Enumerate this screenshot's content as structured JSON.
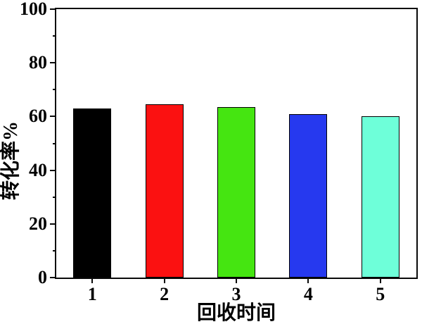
{
  "chart_data": {
    "type": "bar",
    "title": "",
    "categories": [
      "1",
      "2",
      "3",
      "4",
      "5"
    ],
    "values": [
      63,
      64.5,
      63.5,
      61,
      60
    ],
    "bar_colors": [
      "#000000",
      "#FB1111",
      "#45E511",
      "#2639EF",
      "#6EFFD9"
    ],
    "bar_edge_color": "#000000",
    "xlabel": "回收时间",
    "ylabel": "转化率%",
    "ylim": [
      0,
      100
    ],
    "y_major_ticks": [
      0,
      20,
      40,
      60,
      80,
      100
    ],
    "y_minor_ticks": [
      10,
      30,
      50,
      70,
      90
    ],
    "grid": "off",
    "legend": "none",
    "frame": "box",
    "axis_color": "#0a0a0a",
    "background_color": "#ffffff"
  }
}
